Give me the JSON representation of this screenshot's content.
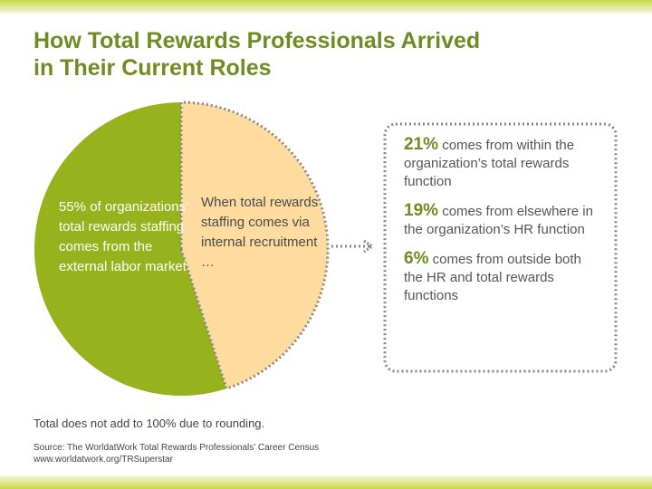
{
  "chart_data": {
    "type": "pie",
    "title": "How Total Rewards Professionals Arrived in Their Current Roles",
    "categories": [
      "55% of organizations’ total rewards staffing comes from the external labor market",
      "When total rewards staffing comes via internal recruitment …"
    ],
    "values": [
      55,
      45
    ],
    "colors": [
      "#96b31e",
      "#fedb9f"
    ],
    "callout": [
      {
        "percent": "21%",
        "text": "comes from within the organization’s total rewards function"
      },
      {
        "percent": "19%",
        "text": "comes from elsewhere in the organization’s HR function"
      },
      {
        "percent": "6%",
        "text": "comes from outside both the HR and total rewards functions"
      }
    ],
    "note": "Total does not add to 100% due to rounding.",
    "source": "Source: The WorldatWork Total Rewards Professionals’ Career Census",
    "url": "www.worldatwork.org/TRSuperstar"
  }
}
